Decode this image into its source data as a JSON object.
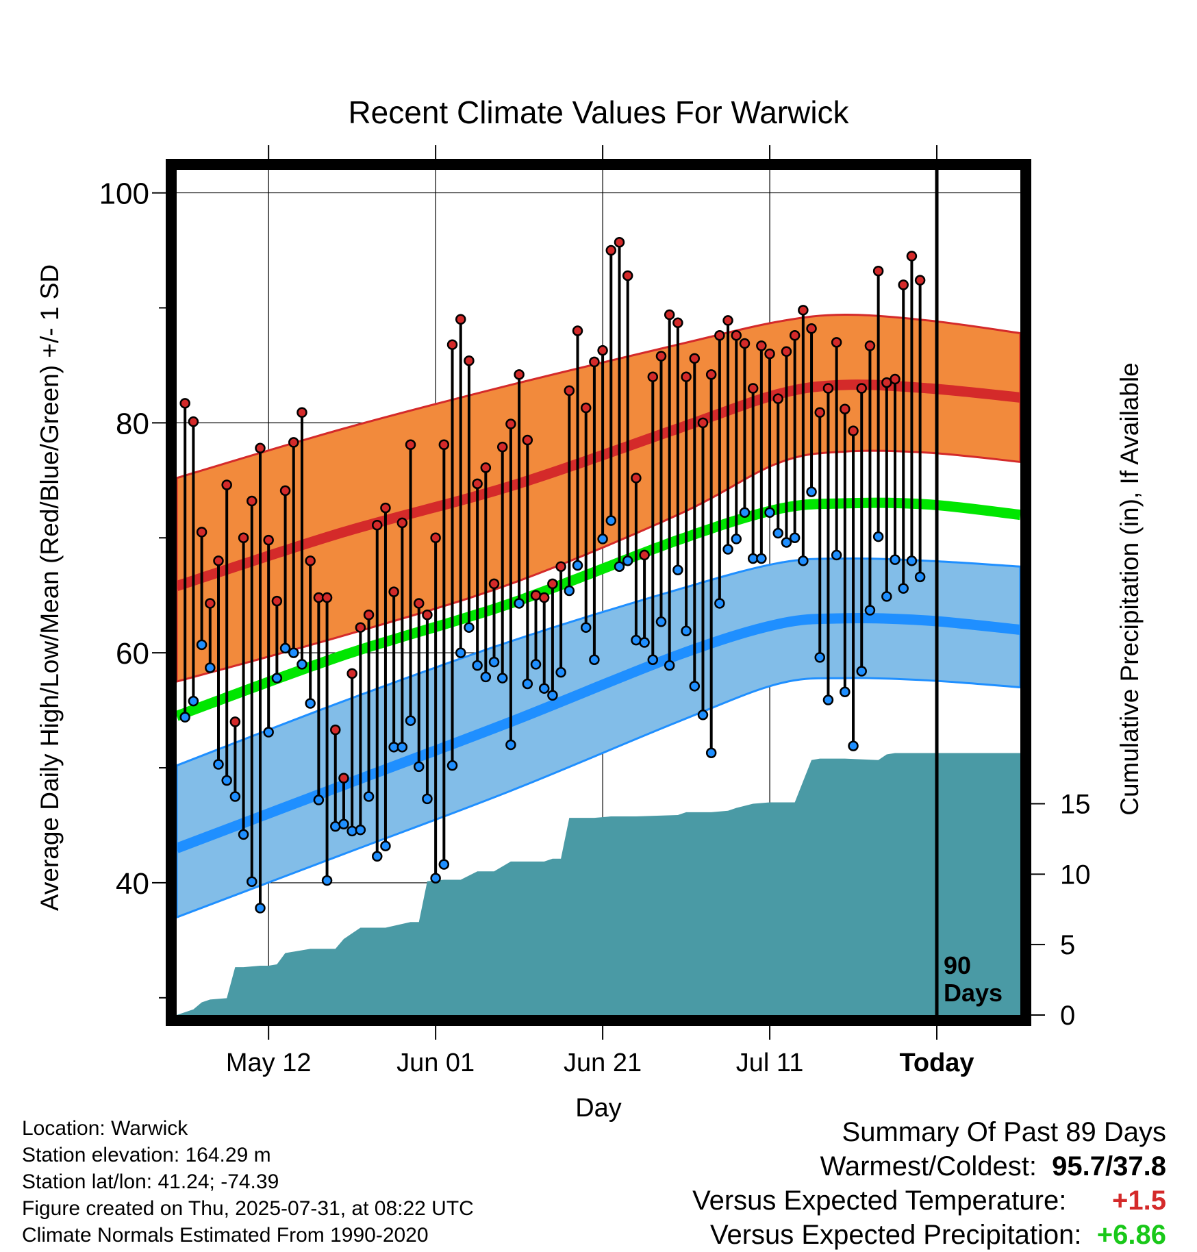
{
  "chart_data": {
    "type": "line",
    "title": "Recent Climate Values For Warwick",
    "xlabel": "Day",
    "ylabel": "Average Daily High/Low/Mean (Red/Blue/Green) +/- 1 SD",
    "y2label": "Cumulative Precipitation (in), If Available",
    "x_tick_labels": [
      "May 12",
      "Jun 01",
      "Jun 21",
      "Jul 11",
      "Today"
    ],
    "x_tick_days": [
      11,
      31,
      51,
      71,
      91
    ],
    "xlim": [
      0,
      101
    ],
    "ylim": [
      28.5,
      102
    ],
    "y_ticks": [
      40,
      60,
      80,
      100
    ],
    "y2_ticks": [
      0,
      5,
      10,
      15
    ],
    "y2lim": [
      0,
      60
    ],
    "today_marker": {
      "day": 91,
      "label_line1": "90",
      "label_line2": "Days"
    },
    "colors": {
      "high": "#d42a2a",
      "high_band": "#f28a3c",
      "low": "#1f8fff",
      "low_band": "#82bde8",
      "mean": "#00e600",
      "precip": "#4a9aa5"
    },
    "normal_high": {
      "days": [
        0,
        20,
        40,
        60,
        72,
        80,
        90,
        101
      ],
      "mean": [
        65.8,
        70.5,
        74.5,
        79.5,
        82.5,
        83.3,
        83.0,
        82.2
      ],
      "upper": [
        75.2,
        79.5,
        83.3,
        86.8,
        88.8,
        89.4,
        88.9,
        87.8
      ],
      "lower": [
        57.5,
        61.5,
        66.0,
        72.0,
        76.5,
        77.5,
        77.4,
        76.6
      ]
    },
    "normal_low": {
      "days": [
        0,
        20,
        40,
        60,
        72,
        80,
        90,
        101
      ],
      "mean": [
        43.0,
        48.5,
        54.0,
        59.8,
        62.5,
        63.0,
        62.8,
        62.0
      ],
      "upper": [
        50.2,
        55.8,
        61.0,
        65.5,
        67.8,
        68.2,
        68.0,
        67.5
      ],
      "lower": [
        37.0,
        42.5,
        48.0,
        54.0,
        57.3,
        57.8,
        57.6,
        57.0
      ]
    },
    "normal_mean": {
      "days": [
        0,
        20,
        40,
        60,
        72,
        80,
        90,
        101
      ],
      "values": [
        54.5,
        59.8,
        64.3,
        69.8,
        72.5,
        73.0,
        72.9,
        72.0
      ]
    },
    "daily_high": [
      81.7,
      80.1,
      70.5,
      64.3,
      68.0,
      74.6,
      54.0,
      70.0,
      73.2,
      77.8,
      69.8,
      64.5,
      74.1,
      78.3,
      80.9,
      68.0,
      64.8,
      64.8,
      53.3,
      49.1,
      58.2,
      62.2,
      63.3,
      71.1,
      72.6,
      65.3,
      71.3,
      78.1,
      64.3,
      63.3,
      70.0,
      78.1,
      86.8,
      89.0,
      85.4,
      74.7,
      76.1,
      66.0,
      77.9,
      79.9,
      84.2,
      78.5,
      65.0,
      64.8,
      66.0,
      67.5,
      82.8,
      88.0,
      81.3,
      85.3,
      86.3,
      95.0,
      95.7,
      92.8,
      75.2,
      68.5,
      84.0,
      85.8,
      89.4,
      88.7,
      84.0,
      85.6,
      80.0,
      84.2,
      87.6,
      88.9,
      87.6,
      86.9,
      83.0,
      86.7,
      86.0,
      82.1,
      86.2,
      87.6,
      89.8,
      88.2,
      80.9,
      83.0,
      87.0,
      81.2,
      79.3,
      83.0,
      86.7,
      93.2,
      83.5,
      83.8,
      92.0,
      94.5,
      92.4
    ],
    "daily_low": [
      54.4,
      55.8,
      60.7,
      58.7,
      50.3,
      48.9,
      47.5,
      44.2,
      40.1,
      37.8,
      53.1,
      57.8,
      60.4,
      60.0,
      59.0,
      55.6,
      47.2,
      40.2,
      44.9,
      45.1,
      44.5,
      44.6,
      47.5,
      42.3,
      43.2,
      51.8,
      51.8,
      54.1,
      50.1,
      47.3,
      40.4,
      41.6,
      50.2,
      60.0,
      62.2,
      58.9,
      57.9,
      59.2,
      57.8,
      52.0,
      64.3,
      57.3,
      59.0,
      56.9,
      56.3,
      58.3,
      65.4,
      67.6,
      62.2,
      59.4,
      69.9,
      71.5,
      67.5,
      68.0,
      61.1,
      60.9,
      59.4,
      62.7,
      58.9,
      67.2,
      61.9,
      57.1,
      54.6,
      51.3,
      64.3,
      69.0,
      69.9,
      72.2,
      68.2,
      68.2,
      72.2,
      70.4,
      69.6,
      70.0,
      68.0,
      74.0,
      59.6,
      55.9,
      68.5,
      56.6,
      51.9,
      58.4,
      63.7,
      70.1,
      64.9,
      68.1,
      65.6,
      68.0,
      66.6
    ],
    "precip_days": [
      0,
      2,
      3,
      4,
      6,
      7,
      8,
      10,
      11,
      12,
      13,
      14,
      16,
      17,
      18,
      19,
      20,
      22,
      24,
      25,
      28,
      29,
      30,
      32,
      34,
      36,
      38,
      40,
      42,
      44,
      45,
      46,
      47,
      50,
      52,
      55,
      60,
      61,
      64,
      66,
      67,
      69,
      71,
      73,
      74,
      76,
      77,
      80,
      84,
      85,
      86,
      91,
      99,
      101
    ],
    "precip_cumulative": [
      0,
      0.4,
      0.9,
      1.1,
      1.2,
      3.4,
      3.4,
      3.5,
      3.5,
      3.6,
      4.4,
      4.5,
      4.7,
      4.7,
      4.7,
      4.7,
      5.4,
      6.2,
      6.2,
      6.2,
      6.6,
      6.6,
      9.5,
      9.6,
      9.6,
      10.2,
      10.2,
      10.9,
      10.9,
      10.9,
      11.1,
      11.1,
      14.0,
      14.0,
      14.1,
      14.1,
      14.2,
      14.4,
      14.4,
      14.5,
      14.7,
      15.0,
      15.1,
      15.1,
      15.1,
      18.1,
      18.2,
      18.2,
      18.1,
      18.5,
      18.6,
      18.6,
      18.6,
      18.6
    ],
    "precip_plot_scale_note": ""
  },
  "footer": {
    "location": "Location: Warwick",
    "elevation": "Station elevation: 164.29 m",
    "latlon": "Station lat/lon: 41.24; -74.39",
    "created": "Figure created on Thu, 2025-07-31, at 08:22 UTC",
    "normals": "Climate Normals Estimated From 1990-2020"
  },
  "summary": {
    "title": "Summary Of Past 89 Days",
    "warm_cold_label": "Warmest/Coldest:",
    "warm_cold_value": "95.7/37.8",
    "temp_label": "Versus Expected Temperature:",
    "temp_value": "+1.5",
    "temp_color": "#d42a2a",
    "precip_label": "Versus Expected Precipitation:",
    "precip_value": "+6.86",
    "precip_color": "#19c819"
  }
}
